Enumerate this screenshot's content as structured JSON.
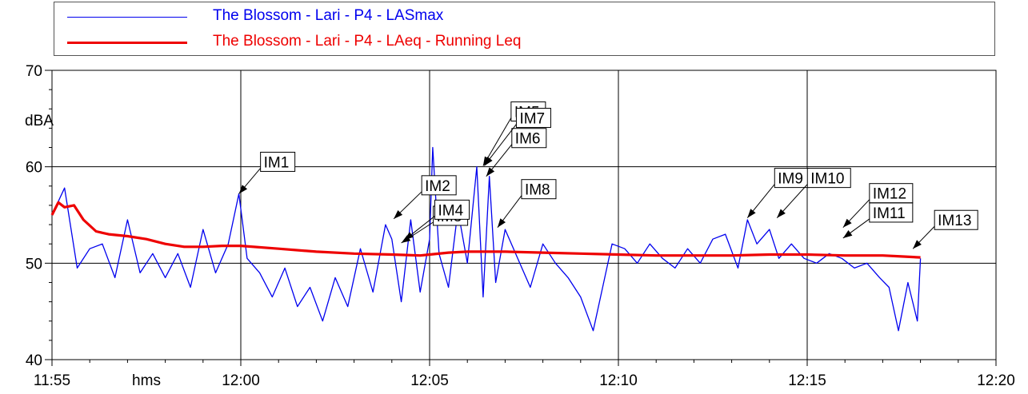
{
  "legend": {
    "series1": "The Blossom - Lari - P4 - LASmax",
    "series2": "The Blossom - Lari - P4 - LAeq - Running Leq"
  },
  "chart_data": {
    "type": "line",
    "title": "",
    "xlabel": "hms",
    "ylabel": "dBA",
    "xlim": [
      "11:55",
      "12:20"
    ],
    "ylim": [
      40,
      70
    ],
    "x_ticks": [
      "11:55",
      "12:00",
      "12:05",
      "12:10",
      "12:15",
      "12:20"
    ],
    "y_ticks": [
      40,
      50,
      60,
      70
    ],
    "grid": true,
    "legend_position": "top",
    "colors": {
      "series1": "#0000ee",
      "series2": "#ee0000",
      "marker_line": "#000000"
    },
    "series": [
      {
        "name": "The Blossom - Lari - P4 - LASmax",
        "x": [
          "11:55:00",
          "11:55:20",
          "11:55:40",
          "11:56:00",
          "11:56:20",
          "11:56:40",
          "11:57:00",
          "11:57:20",
          "11:57:40",
          "11:58:00",
          "11:58:20",
          "11:58:40",
          "11:59:00",
          "11:59:20",
          "11:59:40",
          "11:59:57",
          "12:00:10",
          "12:00:30",
          "12:00:50",
          "12:01:10",
          "12:01:30",
          "12:01:50",
          "12:02:10",
          "12:02:30",
          "12:02:50",
          "12:03:10",
          "12:03:30",
          "12:03:50",
          "12:04:00",
          "12:04:15",
          "12:04:30",
          "12:04:45",
          "12:05:00",
          "12:05:05",
          "12:05:15",
          "12:05:30",
          "12:05:45",
          "12:06:00",
          "12:06:15",
          "12:06:25",
          "12:06:35",
          "12:06:45",
          "12:07:00",
          "12:07:20",
          "12:07:40",
          "12:08:00",
          "12:08:20",
          "12:08:40",
          "12:09:00",
          "12:09:20",
          "12:09:35",
          "12:09:50",
          "12:10:10",
          "12:10:30",
          "12:10:50",
          "12:11:10",
          "12:11:30",
          "12:11:50",
          "12:12:10",
          "12:12:30",
          "12:12:50",
          "12:13:10",
          "12:13:25",
          "12:13:40",
          "12:14:00",
          "12:14:15",
          "12:14:35",
          "12:14:55",
          "12:15:15",
          "12:15:35",
          "12:15:55",
          "12:16:15",
          "12:16:35",
          "12:16:55",
          "12:17:10",
          "12:17:25",
          "12:17:40",
          "12:17:55",
          "12:18:00"
        ],
        "values": [
          55.0,
          57.8,
          49.5,
          51.5,
          52.0,
          48.5,
          54.5,
          49.0,
          51.0,
          48.5,
          51.0,
          47.5,
          53.5,
          49.0,
          52.0,
          57.2,
          50.5,
          49.0,
          46.5,
          49.5,
          45.5,
          47.5,
          44.0,
          48.5,
          45.5,
          51.5,
          47.0,
          54.0,
          52.5,
          46.0,
          54.5,
          47.0,
          52.5,
          62.0,
          51.0,
          47.5,
          55.5,
          50.0,
          60.0,
          46.5,
          59.0,
          48.0,
          53.5,
          50.5,
          47.5,
          52.0,
          50.0,
          48.5,
          46.5,
          43.0,
          47.5,
          52.0,
          51.5,
          50.0,
          52.0,
          50.5,
          49.5,
          51.5,
          50.0,
          52.5,
          53.0,
          49.5,
          54.5,
          52.0,
          53.5,
          50.5,
          52.0,
          50.5,
          50.0,
          51.0,
          50.5,
          49.5,
          50.0,
          48.5,
          47.5,
          43.0,
          48.0,
          44.0,
          50.5
        ]
      },
      {
        "name": "The Blossom - Lari - P4 - LAeq - Running Leq",
        "x": [
          "11:55:00",
          "11:55:10",
          "11:55:20",
          "11:55:35",
          "11:55:50",
          "11:56:10",
          "11:56:30",
          "11:57:00",
          "11:57:30",
          "11:58:00",
          "11:58:30",
          "11:59:00",
          "11:59:30",
          "12:00:00",
          "12:01:00",
          "12:02:00",
          "12:03:00",
          "12:04:00",
          "12:04:45",
          "12:05:00",
          "12:05:30",
          "12:06:00",
          "12:07:00",
          "12:08:00",
          "12:09:00",
          "12:10:00",
          "12:11:00",
          "12:12:00",
          "12:13:00",
          "12:14:00",
          "12:15:00",
          "12:16:00",
          "12:17:00",
          "12:17:30",
          "12:18:00"
        ],
        "values": [
          55.0,
          56.3,
          55.8,
          56.0,
          54.5,
          53.3,
          53.0,
          52.8,
          52.5,
          52.0,
          51.7,
          51.7,
          51.8,
          51.8,
          51.5,
          51.2,
          51.0,
          50.9,
          50.8,
          50.9,
          51.1,
          51.2,
          51.2,
          51.1,
          51.0,
          50.9,
          50.8,
          50.8,
          50.8,
          50.9,
          50.9,
          50.8,
          50.8,
          50.7,
          50.6
        ]
      }
    ],
    "markers": [
      {
        "label": "IM1",
        "time": "11:59:57",
        "value": 57.2
      },
      {
        "label": "IM2",
        "time": "12:04:03",
        "value": 54.6
      },
      {
        "label": "IM3",
        "time": "12:04:15",
        "value": 52.1
      },
      {
        "label": "IM4",
        "time": "12:04:20",
        "value": 52.4
      },
      {
        "label": "IM5",
        "time": "12:06:25",
        "value": 60.1
      },
      {
        "label": "IM6",
        "time": "12:06:30",
        "value": 59.0
      },
      {
        "label": "IM7",
        "time": "12:06:27",
        "value": 60.1
      },
      {
        "label": "IM8",
        "time": "12:06:48",
        "value": 53.7
      },
      {
        "label": "IM9",
        "time": "12:13:25",
        "value": 54.7
      },
      {
        "label": "IM10",
        "time": "12:14:12",
        "value": 54.7
      },
      {
        "label": "IM11",
        "time": "12:15:57",
        "value": 52.6
      },
      {
        "label": "IM12",
        "time": "12:15:57",
        "value": 53.7
      },
      {
        "label": "IM13",
        "time": "12:17:48",
        "value": 51.5
      }
    ]
  }
}
